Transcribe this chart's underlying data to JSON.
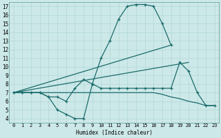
{
  "xlabel": "Humidex (Indice chaleur)",
  "xlim": [
    -0.5,
    23.5
  ],
  "ylim": [
    3.5,
    17.5
  ],
  "xticks": [
    0,
    1,
    2,
    3,
    4,
    5,
    6,
    7,
    8,
    9,
    10,
    11,
    12,
    13,
    14,
    15,
    16,
    17,
    18,
    19,
    20,
    21,
    22,
    23
  ],
  "yticks": [
    4,
    5,
    6,
    7,
    8,
    9,
    10,
    11,
    12,
    13,
    14,
    15,
    16,
    17
  ],
  "bg_color": "#cde8e8",
  "grid_color": "#b0d8d8",
  "line_color": "#1a6b6b",
  "lines": [
    {
      "x": [
        0,
        1,
        2,
        3,
        4,
        5,
        6,
        7,
        8,
        9,
        10,
        11,
        12,
        13,
        14,
        15,
        16,
        17,
        18
      ],
      "y": [
        7,
        7,
        7,
        7,
        6.5,
        5,
        4.5,
        4,
        4,
        8,
        11,
        13,
        15.5,
        17,
        17.2,
        17.2,
        17,
        15,
        12.5
      ],
      "marker": true
    },
    {
      "x": [
        0,
        18
      ],
      "y": [
        7,
        12.5
      ],
      "marker": false
    },
    {
      "x": [
        0,
        20
      ],
      "y": [
        7,
        10.5
      ],
      "marker": false
    },
    {
      "x": [
        0,
        1,
        2,
        3,
        4,
        5,
        6,
        7,
        8,
        9,
        10,
        11,
        12,
        13,
        14,
        15,
        16,
        17,
        18,
        19,
        20,
        21,
        22,
        23
      ],
      "y": [
        7,
        7,
        7,
        7,
        6.5,
        6.5,
        6.0,
        7.5,
        8.5,
        8.0,
        7.5,
        7.5,
        7.5,
        7.5,
        7.5,
        7.5,
        7.5,
        7.5,
        7.5,
        10.5,
        9.5,
        7.0,
        5.5,
        5.5
      ],
      "marker": true
    },
    {
      "x": [
        0,
        1,
        2,
        3,
        4,
        5,
        6,
        7,
        8,
        9,
        10,
        11,
        12,
        13,
        14,
        15,
        16,
        17,
        18,
        19,
        20,
        21,
        22,
        23
      ],
      "y": [
        7,
        7,
        7,
        7,
        7,
        7,
        7,
        7,
        7,
        7,
        7,
        7,
        7,
        7,
        7,
        7,
        7,
        6.8,
        6.5,
        6.3,
        6.0,
        5.8,
        5.5,
        5.5
      ],
      "marker": false
    }
  ]
}
